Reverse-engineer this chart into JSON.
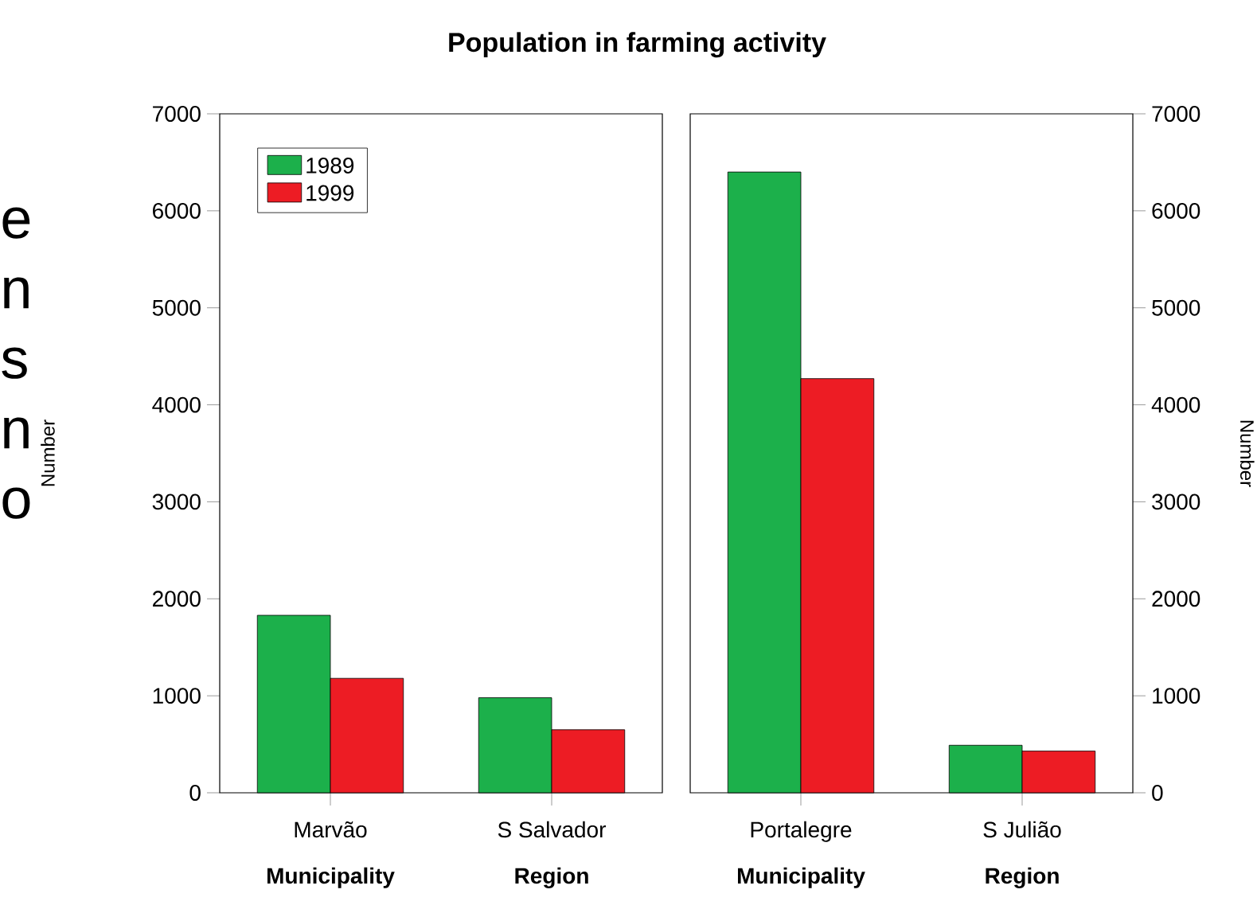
{
  "chart_data": [
    {
      "type": "bar",
      "title": "Population in farming activity",
      "ylabel": "Number",
      "categories": [
        "Marvão",
        "S Salvador"
      ],
      "series": [
        {
          "name": "1989",
          "color": "#1cb04b",
          "values": [
            1830,
            980
          ]
        },
        {
          "name": "1999",
          "color": "#ed1c24",
          "values": [
            1180,
            650
          ]
        }
      ],
      "ylim": [
        0,
        7000
      ],
      "yticks": [
        0,
        1000,
        2000,
        3000,
        4000,
        5000,
        6000,
        7000
      ],
      "legend": "top left",
      "annotations": [
        "Municipality",
        "Region",
        "e n s n o"
      ]
    },
    {
      "type": "bar",
      "y2label": "Number",
      "categories": [
        "Portalegre",
        "S Julião"
      ],
      "series": [
        {
          "color": "#1cb04b",
          "values": [
            6400,
            490
          ],
          "axis": "y2"
        },
        {
          "color": "#ed1c24",
          "values": [
            4270,
            430
          ],
          "axis": "y2"
        }
      ],
      "y2lim": [
        0,
        7000
      ],
      "y2ticks": [
        0,
        1000,
        2000,
        3000,
        4000,
        5000,
        6000,
        7000
      ],
      "annotations": [
        "Municipality",
        "Region"
      ]
    }
  ]
}
